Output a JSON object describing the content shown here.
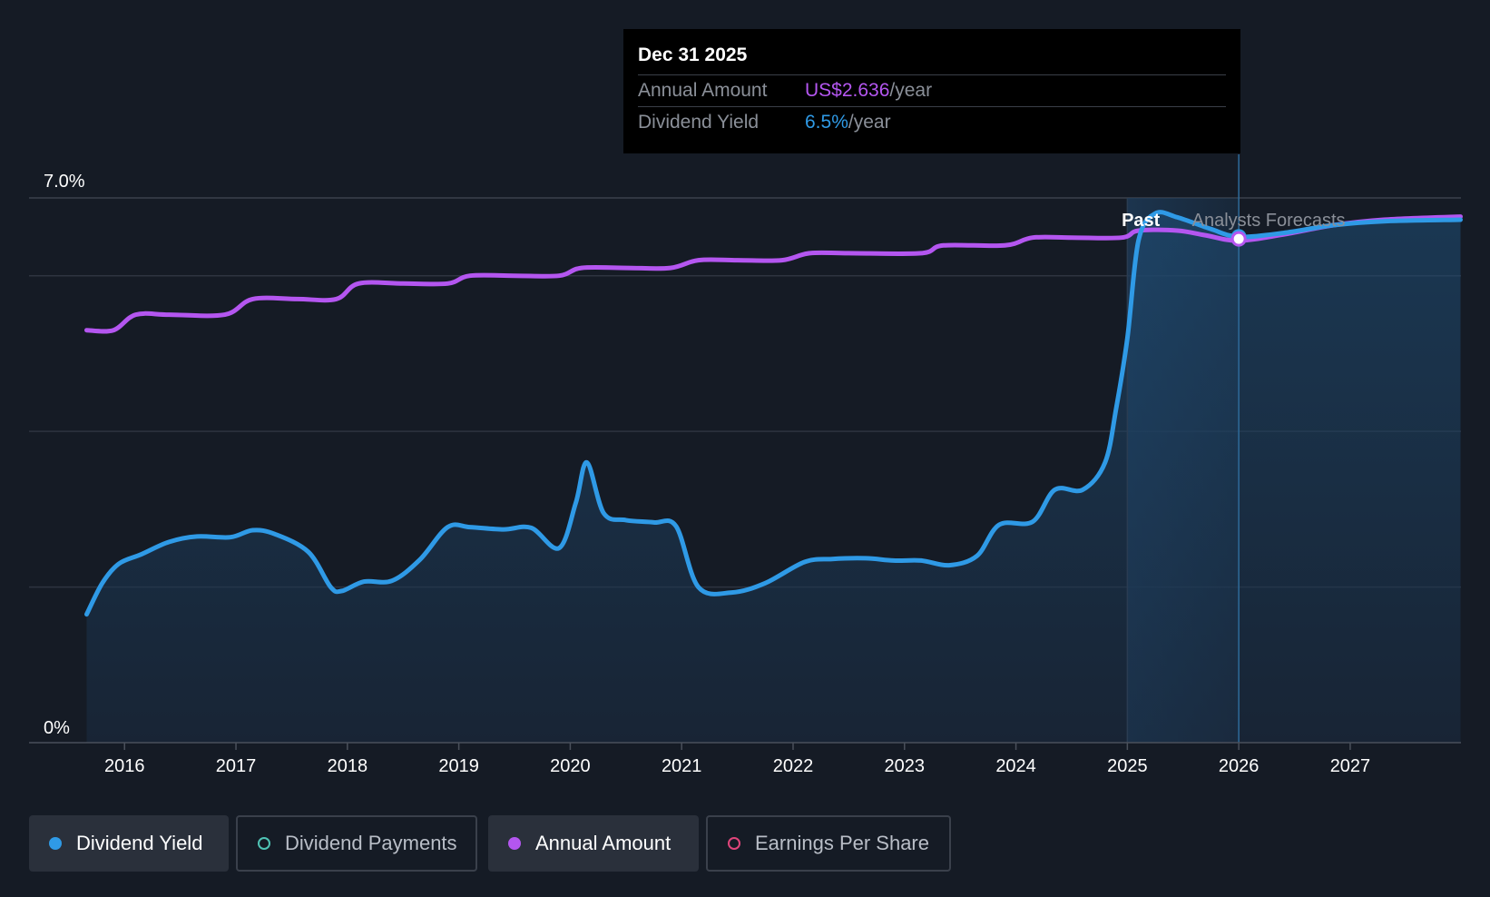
{
  "tooltip": {
    "date": "Dec 31 2025",
    "annual_amount_label": "Annual Amount",
    "annual_amount_value": "US$2.636",
    "annual_amount_unit": "/year",
    "dividend_yield_label": "Dividend Yield",
    "dividend_yield_value": "6.5%",
    "dividend_yield_unit": "/year"
  },
  "regions": {
    "past_label": "Past",
    "forecast_label": "Analysts Forecasts"
  },
  "legend": [
    {
      "label": "Dividend Yield",
      "color": "#2f9ae6",
      "active": true,
      "filled": true
    },
    {
      "label": "Dividend Payments",
      "color": "#4fc3b5",
      "active": false,
      "filled": false
    },
    {
      "label": "Annual Amount",
      "color": "#b456f0",
      "active": true,
      "filled": true
    },
    {
      "label": "Earnings Per Share",
      "color": "#e0457b",
      "active": false,
      "filled": false
    }
  ],
  "colors": {
    "background": "#151b25",
    "dividend_yield": "#2f9ae6",
    "annual_amount": "#b456f0",
    "grid": "#2e3440",
    "forecast_band": "#1f3a55"
  },
  "chart_data": {
    "type": "line",
    "title": "",
    "xlabel": "",
    "ylabel": "",
    "x_ticks": [
      "2016",
      "2017",
      "2018",
      "2019",
      "2020",
      "2021",
      "2022",
      "2023",
      "2024",
      "2025",
      "2026",
      "2027"
    ],
    "y_tick_labels": [
      "0%",
      "7.0%"
    ],
    "ylim": [
      0,
      7.0
    ],
    "xlim": [
      2015.66,
      2027.99
    ],
    "grid": true,
    "past_end": 2025.0,
    "forecast_start": 2025.45,
    "marker_date": 2026.0,
    "series": [
      {
        "name": "Dividend Yield",
        "unit": "%",
        "points": [
          [
            2015.66,
            1.65
          ],
          [
            2015.8,
            2.05
          ],
          [
            2015.95,
            2.3
          ],
          [
            2016.15,
            2.42
          ],
          [
            2016.4,
            2.58
          ],
          [
            2016.65,
            2.65
          ],
          [
            2016.95,
            2.64
          ],
          [
            2017.15,
            2.73
          ],
          [
            2017.35,
            2.68
          ],
          [
            2017.65,
            2.45
          ],
          [
            2017.85,
            2.0
          ],
          [
            2017.95,
            1.95
          ],
          [
            2018.15,
            2.07
          ],
          [
            2018.4,
            2.08
          ],
          [
            2018.65,
            2.35
          ],
          [
            2018.9,
            2.77
          ],
          [
            2019.1,
            2.77
          ],
          [
            2019.4,
            2.74
          ],
          [
            2019.65,
            2.76
          ],
          [
            2019.9,
            2.5
          ],
          [
            2020.05,
            3.08
          ],
          [
            2020.15,
            3.6
          ],
          [
            2020.3,
            2.95
          ],
          [
            2020.5,
            2.86
          ],
          [
            2020.75,
            2.83
          ],
          [
            2020.95,
            2.78
          ],
          [
            2021.15,
            2.0
          ],
          [
            2021.45,
            1.93
          ],
          [
            2021.75,
            2.05
          ],
          [
            2022.1,
            2.32
          ],
          [
            2022.35,
            2.36
          ],
          [
            2022.65,
            2.37
          ],
          [
            2022.9,
            2.34
          ],
          [
            2023.15,
            2.34
          ],
          [
            2023.4,
            2.28
          ],
          [
            2023.65,
            2.4
          ],
          [
            2023.85,
            2.8
          ],
          [
            2024.15,
            2.84
          ],
          [
            2024.35,
            3.25
          ],
          [
            2024.6,
            3.25
          ],
          [
            2024.8,
            3.6
          ],
          [
            2024.9,
            4.3
          ],
          [
            2025.0,
            5.2
          ],
          [
            2025.1,
            6.45
          ],
          [
            2025.25,
            6.8
          ],
          [
            2025.45,
            6.75
          ],
          [
            2025.75,
            6.6
          ],
          [
            2026.0,
            6.5
          ],
          [
            2026.4,
            6.55
          ],
          [
            2026.85,
            6.65
          ],
          [
            2027.3,
            6.7
          ],
          [
            2027.99,
            6.72
          ]
        ]
      },
      {
        "name": "Annual Amount",
        "unit": "US$/year",
        "points": [
          [
            2015.66,
            5.3
          ],
          [
            2015.9,
            5.3
          ],
          [
            2016.1,
            5.5
          ],
          [
            2016.4,
            5.5
          ],
          [
            2016.9,
            5.5
          ],
          [
            2017.15,
            5.7
          ],
          [
            2017.55,
            5.7
          ],
          [
            2017.9,
            5.7
          ],
          [
            2018.1,
            5.9
          ],
          [
            2018.5,
            5.9
          ],
          [
            2018.9,
            5.9
          ],
          [
            2019.1,
            6.0
          ],
          [
            2019.5,
            6.0
          ],
          [
            2019.9,
            6.0
          ],
          [
            2020.1,
            6.1
          ],
          [
            2020.5,
            6.1
          ],
          [
            2020.9,
            6.1
          ],
          [
            2021.15,
            6.2
          ],
          [
            2021.5,
            6.2
          ],
          [
            2021.9,
            6.2
          ],
          [
            2022.15,
            6.29
          ],
          [
            2022.5,
            6.29
          ],
          [
            2023.15,
            6.29
          ],
          [
            2023.35,
            6.39
          ],
          [
            2023.9,
            6.39
          ],
          [
            2024.15,
            6.49
          ],
          [
            2024.5,
            6.49
          ],
          [
            2024.95,
            6.49
          ],
          [
            2025.1,
            6.58
          ],
          [
            2025.45,
            6.58
          ],
          [
            2025.7,
            6.52
          ],
          [
            2026.0,
            6.45
          ],
          [
            2026.4,
            6.53
          ],
          [
            2026.85,
            6.65
          ],
          [
            2027.3,
            6.72
          ],
          [
            2027.99,
            6.76
          ]
        ]
      }
    ]
  }
}
